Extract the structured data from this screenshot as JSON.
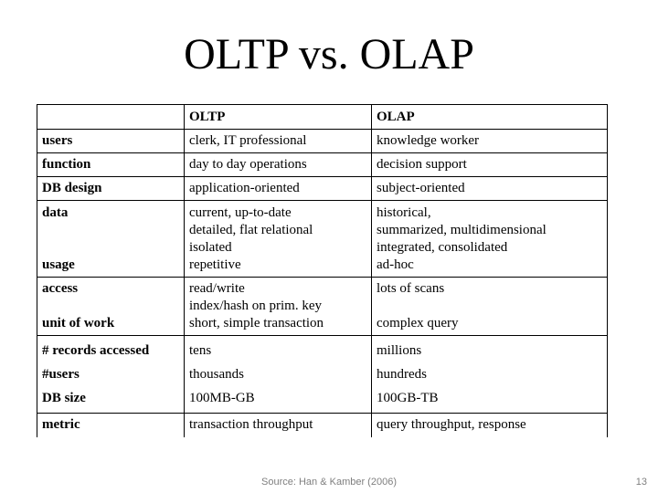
{
  "title": "OLTP vs. OLAP",
  "table": {
    "headers": [
      "",
      "OLTP",
      "OLAP"
    ],
    "rows": [
      {
        "label": "users",
        "oltp": [
          "clerk, IT professional"
        ],
        "olap": [
          "knowledge worker"
        ]
      },
      {
        "label": "function",
        "oltp": [
          "day to day operations"
        ],
        "olap": [
          "decision support"
        ]
      },
      {
        "label": "DB design",
        "oltp": [
          "application-oriented"
        ],
        "olap": [
          "subject-oriented"
        ]
      },
      {
        "label": "data",
        "label2": "usage",
        "oltp": [
          "current, up-to-date",
          "detailed, flat relational",
          "isolated",
          "repetitive"
        ],
        "olap": [
          "historical,",
          "summarized, multidimensional",
          "integrated, consolidated",
          "ad-hoc"
        ]
      },
      {
        "label": "access",
        "label2": "unit of work",
        "oltp": [
          "read/write",
          "index/hash on prim. key",
          "short, simple transaction"
        ],
        "olap": [
          "lots of scans",
          "",
          "complex query"
        ]
      },
      {
        "label": "# records accessed",
        "label2": "#users",
        "label3": "DB size",
        "oltp": [
          "tens",
          "thousands",
          "100MB-GB"
        ],
        "olap": [
          "millions",
          "hundreds",
          "100GB-TB"
        ]
      },
      {
        "label": "metric",
        "oltp": [
          "transaction throughput"
        ],
        "olap": [
          "query throughput, response"
        ]
      }
    ]
  },
  "footer": {
    "source": "Source: Han & Kamber (2006)",
    "page": "13"
  }
}
